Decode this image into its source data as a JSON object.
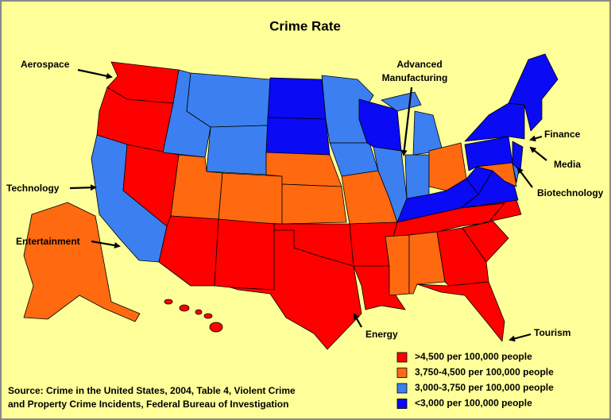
{
  "title": "Crime Rate",
  "annotations": [
    {
      "lines": [
        "Aerospace"
      ]
    },
    {
      "lines": [
        "Advanced",
        "Manufacturing"
      ]
    },
    {
      "lines": [
        "Technology"
      ]
    },
    {
      "lines": [
        "Entertainment"
      ]
    },
    {
      "lines": [
        "Finance"
      ]
    },
    {
      "lines": [
        "Media"
      ]
    },
    {
      "lines": [
        "Biotechnology"
      ]
    },
    {
      "lines": [
        "Energy"
      ]
    },
    {
      "lines": [
        "Tourism"
      ]
    }
  ],
  "legend": [
    {
      "label": ">4,500 per 100,000 people",
      "color": "#ff0000"
    },
    {
      "label": "3,750-4,500 per 100,000 people",
      "color": "#ff6a10"
    },
    {
      "label": "3,000-3,750 per 100,000 people",
      "color": "#3c7ff0"
    },
    {
      "label": "<3,000 per 100,000 people",
      "color": "#0a0af5"
    }
  ],
  "source": [
    "Source: Crime in the United States, 2004, Table 4, Violent Crime",
    "and Property Crime Incidents, Federal Bureau of Investigation"
  ]
}
